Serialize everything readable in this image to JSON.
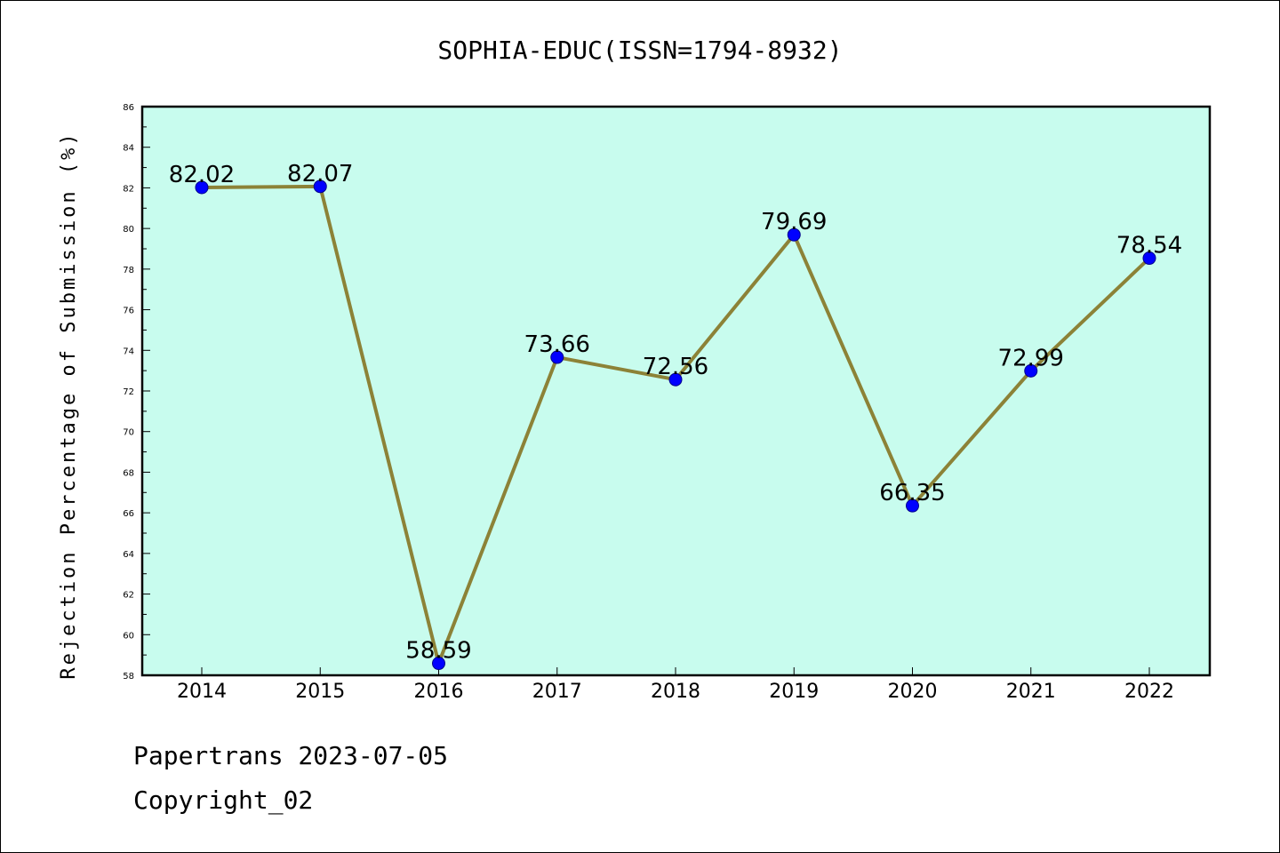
{
  "chart_data": {
    "type": "line",
    "title": "SOPHIA-EDUC(ISSN=1794-8932)",
    "ylabel": "Rejection Percentage of Submission (%)",
    "xlabel": "",
    "categories": [
      "2014",
      "2015",
      "2016",
      "2017",
      "2018",
      "2019",
      "2020",
      "2021",
      "2022"
    ],
    "values": [
      82.02,
      82.07,
      58.59,
      73.66,
      72.56,
      79.69,
      66.35,
      72.99,
      78.54
    ],
    "data_labels": [
      "82.02",
      "82.07",
      "58.59",
      "73.66",
      "72.56",
      "79.69",
      "66.35",
      "72.99",
      "78.54"
    ],
    "ylim": [
      58,
      86
    ],
    "yticks": [
      58,
      60,
      62,
      64,
      66,
      68,
      70,
      72,
      74,
      76,
      78,
      80,
      82,
      84,
      86
    ],
    "grid": false,
    "legend": "none",
    "colors": {
      "plot_background": "#c8fcee",
      "line": "#8c8237",
      "marker": "#0000ff",
      "marker_edge": "#00008b",
      "axes": "#000000"
    }
  },
  "footer": {
    "line1": "Papertrans 2023-07-05",
    "line2": "Copyright_02"
  }
}
